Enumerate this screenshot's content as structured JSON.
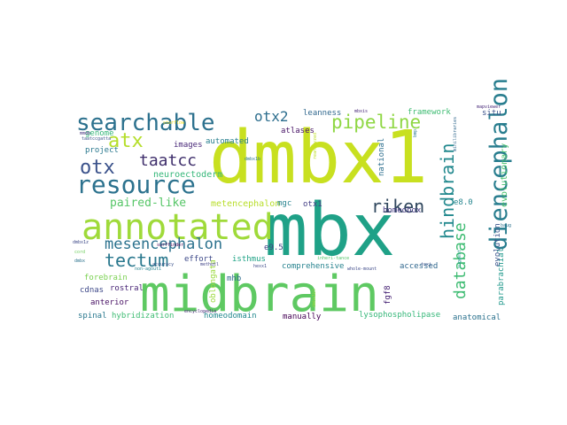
{
  "word_cloud": {
    "background": "#ffffff",
    "words": [
      {
        "text": "dmbx1",
        "color": "#c8e020"
      },
      {
        "text": "mbx",
        "color": "#1fa187"
      },
      {
        "text": "midbrain",
        "color": "#5ec962"
      },
      {
        "text": "annotated",
        "color": "#9fda3a"
      },
      {
        "text": "resource",
        "color": "#2c728e"
      },
      {
        "text": "searchable",
        "color": "#2c718e"
      },
      {
        "text": "diencephalon",
        "color": "#287d8e"
      },
      {
        "text": "atx",
        "color": "#b5de2b"
      },
      {
        "text": "otx",
        "color": "#3b528b"
      },
      {
        "text": "tectum",
        "color": "#2a788e"
      },
      {
        "text": "mesencephalon",
        "color": "#2c728e"
      },
      {
        "text": "pipeline",
        "color": "#8fd744"
      },
      {
        "text": "hindbrain",
        "color": "#23898e"
      },
      {
        "text": "database",
        "color": "#3fbc73"
      },
      {
        "text": "riken",
        "color": "#30475e"
      },
      {
        "text": "taatcc",
        "color": "#3e2e6b"
      },
      {
        "text": "otx2",
        "color": "#2d6e8e"
      },
      {
        "text": "paired-like",
        "color": "#56c667"
      },
      {
        "text": "neuroectoderm",
        "color": "#35b779"
      },
      {
        "text": "metencephalon",
        "color": "#b8de29"
      },
      {
        "text": "evolutionary",
        "color": "#4ac16d"
      },
      {
        "text": "parabrachial",
        "color": "#1f988b"
      },
      {
        "text": "evolution",
        "color": "#3a548c"
      },
      {
        "text": "homeobox",
        "color": "#443a83"
      },
      {
        "text": "national",
        "color": "#2e6f8e"
      },
      {
        "text": "atlases",
        "color": "#471365"
      },
      {
        "text": "leanness",
        "color": "#31688e"
      },
      {
        "text": "framework",
        "color": "#3fbc73"
      },
      {
        "text": "situ",
        "color": "#3b528b"
      },
      {
        "text": "automated",
        "color": "#277f8e"
      },
      {
        "text": "images",
        "color": "#482878"
      },
      {
        "text": "genome",
        "color": "#35b779"
      },
      {
        "text": "project",
        "color": "#2a788e"
      },
      {
        "text": "effort",
        "color": "#3e4a89"
      },
      {
        "text": "isthmus",
        "color": "#20a386"
      },
      {
        "text": "mgc",
        "color": "#26828e"
      },
      {
        "text": "otx1",
        "color": "#433e85"
      },
      {
        "text": "mhb",
        "color": "#2f6c8e"
      },
      {
        "text": "e9.5",
        "color": "#414487"
      },
      {
        "text": "e8.0",
        "color": "#25858e"
      },
      {
        "text": "comprehensive",
        "color": "#26828e"
      },
      {
        "text": "accessed",
        "color": "#31688e"
      },
      {
        "text": "forebrain",
        "color": "#7ad151"
      },
      {
        "text": "cdnas",
        "color": "#3e4989"
      },
      {
        "text": "rostral",
        "color": "#482576"
      },
      {
        "text": "anterior",
        "color": "#471063"
      },
      {
        "text": "oblongata",
        "color": "#9bd93c"
      },
      {
        "text": "fgf8",
        "color": "#482475"
      },
      {
        "text": "spinal",
        "color": "#29788e"
      },
      {
        "text": "hybridization",
        "color": "#3fbc73"
      },
      {
        "text": "homeodomain",
        "color": "#23898e"
      },
      {
        "text": "manually",
        "color": "#440154"
      },
      {
        "text": "lysophospholipase",
        "color": "#35b779"
      },
      {
        "text": "anatomical",
        "color": "#2c728e"
      },
      {
        "text": "whole-mount",
        "color": "#3e4a89"
      },
      {
        "text": "encyclopedia",
        "color": "#482878"
      },
      {
        "text": "accuracy",
        "color": "#3b528b"
      },
      {
        "text": "methqtl",
        "color": "#414487"
      },
      {
        "text": "dmbx1z",
        "color": "#3e4a89"
      },
      {
        "text": "dmbx",
        "color": "#2c728e"
      },
      {
        "text": "cord",
        "color": "#6ccd5a"
      },
      {
        "text": "taatccgatta",
        "color": "#3b528b"
      },
      {
        "text": "mmdb",
        "color": "#46327e"
      },
      {
        "text": "starflow",
        "color": "#fde725"
      },
      {
        "text": "surffinder",
        "color": "#440154"
      },
      {
        "text": "non-agouti",
        "color": "#26828e"
      },
      {
        "text": "mapviewer",
        "color": "#482878"
      },
      {
        "text": "mbxis",
        "color": "#482878"
      },
      {
        "text": "hexx1",
        "color": "#3e4a89"
      },
      {
        "text": "inheri-tance",
        "color": "#52c569"
      },
      {
        "text": "dmbx1b",
        "color": "#2a788e"
      },
      {
        "text": "minilibraries",
        "color": "#31688e"
      },
      {
        "text": "reanalyzed",
        "color": "#bddf26"
      },
      {
        "text": "dmbx1bl",
        "color": "#9bd93c"
      },
      {
        "text": "toxi",
        "color": "#3b528b"
      },
      {
        "text": "bmp",
        "color": "#2a788e"
      },
      {
        "text": "suggest",
        "color": "#1f988b"
      },
      {
        "text": "baug",
        "color": "#2c728e"
      }
    ]
  }
}
